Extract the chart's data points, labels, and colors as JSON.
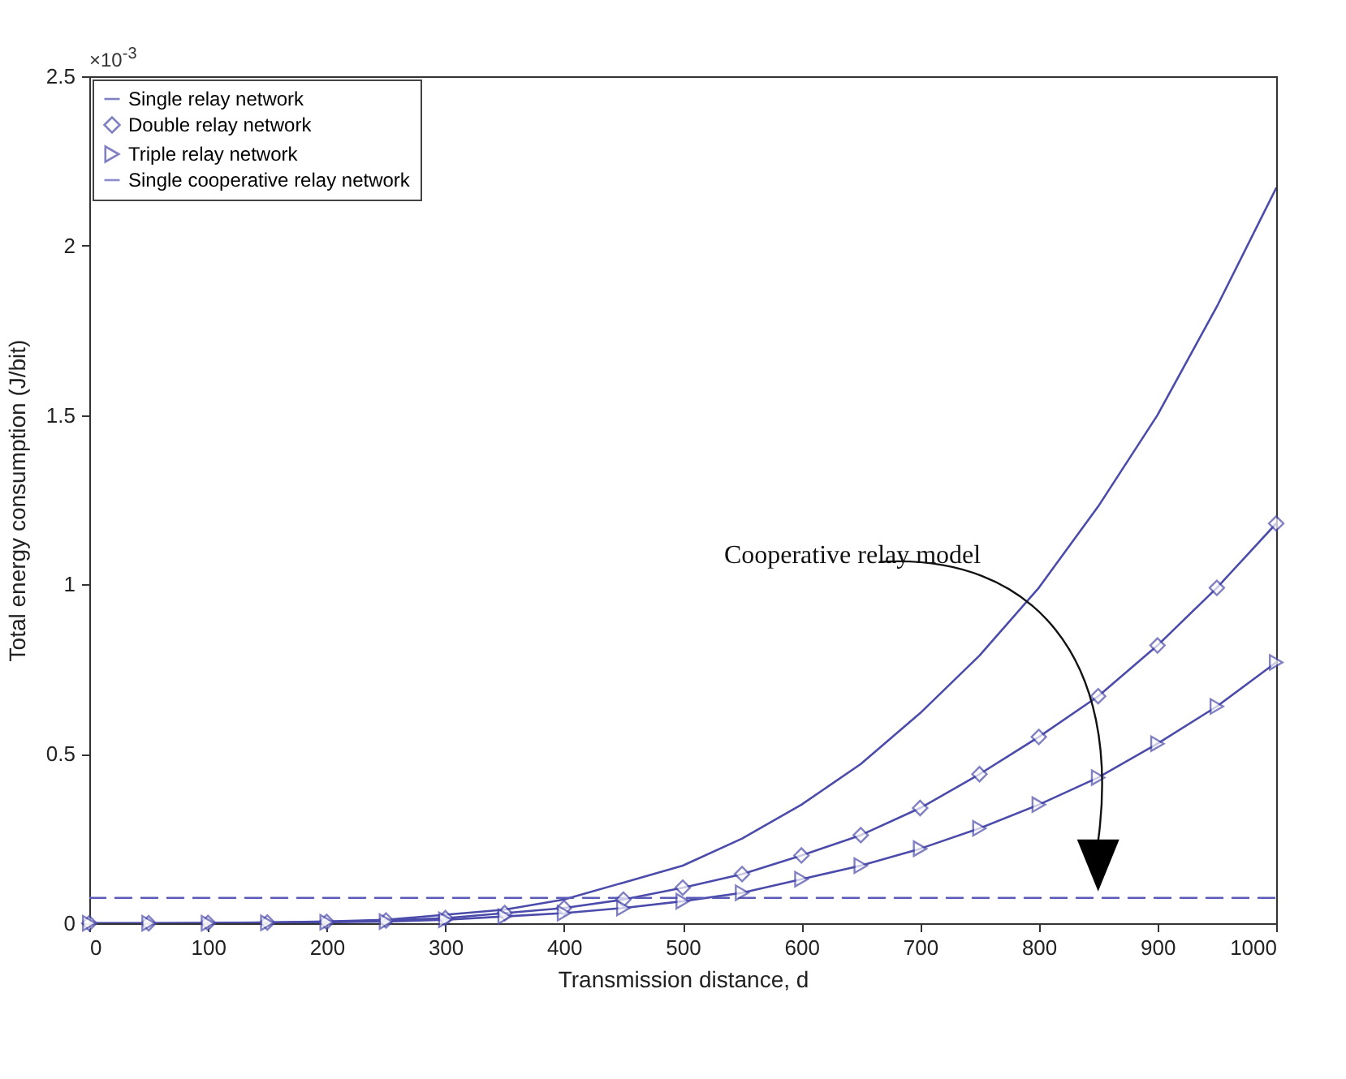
{
  "chart_data": {
    "type": "line",
    "xlabel": "Transmission distance, d",
    "ylabel": "Total energy consumption (J/bit)",
    "x": [
      0,
      50,
      100,
      150,
      200,
      250,
      300,
      350,
      400,
      450,
      500,
      550,
      600,
      650,
      700,
      750,
      800,
      850,
      900,
      950,
      1000
    ],
    "series": [
      {
        "name": "Single relay network",
        "color": "#4b4bab",
        "marker": "none",
        "values": [
          0,
          0,
          0,
          0.002,
          0.005,
          0.01,
          0.025,
          0.04,
          0.07,
          0.12,
          0.17,
          0.25,
          0.35,
          0.47,
          0.62,
          0.79,
          0.99,
          1.23,
          1.5,
          1.82,
          2.17
        ]
      },
      {
        "name": "Double relay network",
        "color": "#4b4bab",
        "marker": "diamond",
        "values": [
          0,
          0,
          0.001,
          0.002,
          0.004,
          0.008,
          0.015,
          0.03,
          0.045,
          0.07,
          0.105,
          0.145,
          0.2,
          0.26,
          0.34,
          0.44,
          0.55,
          0.67,
          0.82,
          0.99,
          1.18
        ]
      },
      {
        "name": "Triple relay network",
        "color": "#4b4bab",
        "marker": "triangle",
        "values": [
          0,
          0,
          0,
          0.001,
          0.003,
          0.005,
          0.01,
          0.02,
          0.03,
          0.045,
          0.065,
          0.09,
          0.13,
          0.17,
          0.22,
          0.28,
          0.35,
          0.43,
          0.53,
          0.64,
          0.77
        ]
      },
      {
        "name": "Single cooperative relay network",
        "color": "#5a5ab8",
        "marker": "none",
        "line_style": "dashed",
        "values": [
          0.075,
          0.075,
          0.075,
          0.075,
          0.075,
          0.075,
          0.075,
          0.075,
          0.075,
          0.075,
          0.075,
          0.075,
          0.075,
          0.075,
          0.075,
          0.075,
          0.075,
          0.075,
          0.075,
          0.075,
          0.075
        ]
      }
    ],
    "xlim": [
      0,
      1000
    ],
    "xticks": [
      0,
      100,
      200,
      300,
      400,
      500,
      600,
      700,
      800,
      900,
      1000
    ],
    "ylim": [
      0,
      2.5
    ],
    "yticks": [
      0,
      0.5,
      1,
      1.5,
      2,
      2.5
    ],
    "legend": "top left",
    "grid": false,
    "annotations": [
      "×10$^{-3}$",
      "Cooperative relay model"
    ]
  }
}
